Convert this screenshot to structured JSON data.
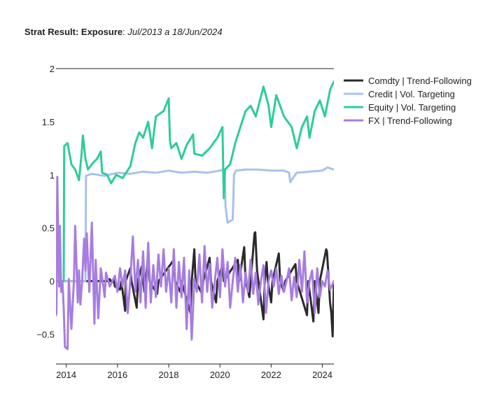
{
  "title": {
    "bold": "Strat Result: Exposure",
    "sep": ": ",
    "italic": "Jul/2013 a 18/Jun/2024"
  },
  "chart_data": {
    "type": "line",
    "title": "Strat Result: Exposure: Jul/2013 a 18/Jun/2024",
    "xlim": [
      2013.6,
      2024.45
    ],
    "ylim": [
      -0.78,
      2.0
    ],
    "x_ticks": [
      2014,
      2016,
      2018,
      2020,
      2022,
      2024
    ],
    "x_tick_labels": [
      "2014",
      "2016",
      "2018",
      "2020",
      "2022",
      "2024"
    ],
    "y_ticks": [
      -0.5,
      0,
      0.5,
      1,
      1.5,
      2
    ],
    "y_tick_labels": [
      "−0.5",
      "0",
      "0.5",
      "1",
      "1.5",
      "2"
    ],
    "legend_position": "right",
    "grid": false,
    "series": [
      {
        "name": "Comdty | Trend-Following",
        "color": "#2a2a2a",
        "x": [
          2013.6,
          2015.65,
          2015.7,
          2015.72,
          2015.85,
          2015.9,
          2016.1,
          2016.15,
          2016.3,
          2016.32,
          2016.5,
          2016.55,
          2016.75,
          2016.8,
          2016.95,
          2017.05,
          2017.1,
          2017.2,
          2017.25,
          2017.55,
          2017.6,
          2018.2,
          2018.25,
          2018.45,
          2018.5,
          2018.85,
          2018.9,
          2019.0,
          2019.05,
          2019.3,
          2019.35,
          2019.6,
          2019.65,
          2019.85,
          2019.9,
          2020.1,
          2020.15,
          2020.7,
          2020.75,
          2020.95,
          2021.0,
          2021.15,
          2021.2,
          2021.35,
          2021.38,
          2021.45,
          2021.5,
          2021.7,
          2021.75,
          2021.82,
          2021.87,
          2022.0,
          2022.05,
          2022.3,
          2022.35,
          2022.5,
          2022.55,
          2022.95,
          2023.0,
          2023.4,
          2023.45,
          2023.65,
          2023.7,
          2023.85,
          2023.9,
          2024.15,
          2024.18,
          2024.25,
          2024.3,
          2024.35,
          2024.4,
          2024.45
        ],
        "values": [
          0,
          0,
          0.02,
          0,
          0.01,
          -0.05,
          -0.08,
          0,
          -0.28,
          0,
          0.12,
          0,
          -0.25,
          0,
          0.14,
          -0.1,
          0,
          0.25,
          0,
          -0.12,
          0,
          0.2,
          0,
          -0.1,
          0,
          -0.3,
          0,
          0.3,
          0,
          -0.12,
          0,
          0.22,
          0,
          -0.2,
          0,
          0.15,
          0,
          0.2,
          0,
          0.32,
          0,
          -0.15,
          0,
          0.45,
          0.46,
          0.1,
          0,
          -0.36,
          0,
          0.18,
          0,
          -0.2,
          0,
          0.26,
          0,
          -0.1,
          0,
          0.16,
          0,
          -0.32,
          0,
          -0.38,
          0,
          -0.3,
          0,
          0.3,
          0.28,
          0,
          -0.2,
          -0.3,
          -0.52,
          0
        ]
      },
      {
        "name": "Credit | Vol. Targeting",
        "color": "#a6c3ec",
        "x": [
          2013.6,
          2014.75,
          2014.77,
          2015.0,
          2015.5,
          2016.0,
          2016.5,
          2017.0,
          2017.5,
          2018.0,
          2018.5,
          2019.0,
          2019.5,
          2020.0,
          2020.18,
          2020.22,
          2020.3,
          2020.5,
          2020.55,
          2020.62,
          2021.0,
          2021.5,
          2022.0,
          2022.5,
          2022.7,
          2022.75,
          2022.85,
          2023.0,
          2023.5,
          2024.0,
          2024.2,
          2024.45
        ],
        "values": [
          0,
          0,
          0.99,
          1.01,
          0.99,
          1.02,
          1.01,
          1.03,
          1.02,
          1.04,
          1.02,
          1.03,
          1.02,
          1.04,
          1.05,
          0.7,
          0.55,
          0.58,
          1.0,
          1.04,
          1.05,
          1.05,
          1.04,
          1.04,
          1.02,
          0.93,
          0.97,
          1.02,
          1.03,
          1.04,
          1.07,
          1.05
        ]
      },
      {
        "name": "Equity | Vol. Targeting",
        "color": "#2ecc9a",
        "x": [
          2013.6,
          2013.9,
          2013.92,
          2014.05,
          2014.2,
          2014.35,
          2014.5,
          2014.6,
          2014.65,
          2014.75,
          2014.85,
          2015.0,
          2015.2,
          2015.35,
          2015.4,
          2015.6,
          2015.75,
          2015.95,
          2016.2,
          2016.5,
          2016.7,
          2016.85,
          2017.0,
          2017.2,
          2017.35,
          2017.5,
          2017.8,
          2018.0,
          2018.05,
          2018.1,
          2018.3,
          2018.5,
          2018.7,
          2018.95,
          2019.0,
          2019.3,
          2019.6,
          2019.9,
          2020.1,
          2020.15,
          2020.2,
          2020.4,
          2020.6,
          2020.8,
          2021.0,
          2021.2,
          2021.4,
          2021.7,
          2021.9,
          2022.0,
          2022.2,
          2022.5,
          2022.8,
          2023.0,
          2023.2,
          2023.4,
          2023.5,
          2023.7,
          2023.9,
          2024.1,
          2024.3,
          2024.45
        ],
        "values": [
          0,
          0,
          1.27,
          1.3,
          1.1,
          1.05,
          0.95,
          1.2,
          1.37,
          1.15,
          1.05,
          1.1,
          1.15,
          1.22,
          1.02,
          1.0,
          0.92,
          1.0,
          0.97,
          1.08,
          1.3,
          1.4,
          1.35,
          1.5,
          1.25,
          1.55,
          1.6,
          1.72,
          1.32,
          1.25,
          1.3,
          1.15,
          1.28,
          1.38,
          1.2,
          1.18,
          1.25,
          1.35,
          1.45,
          0.78,
          1.05,
          1.1,
          1.3,
          1.45,
          1.6,
          1.65,
          1.55,
          1.83,
          1.65,
          1.45,
          1.75,
          1.55,
          1.45,
          1.25,
          1.45,
          1.55,
          1.35,
          1.6,
          1.7,
          1.55,
          1.8,
          1.88
        ]
      },
      {
        "name": "FX | Trend-Following",
        "color": "#a77de0",
        "x": [
          2013.6,
          2013.62,
          2013.65,
          2013.72,
          2013.75,
          2013.8,
          2013.85,
          2013.9,
          2013.95,
          2014.05,
          2014.1,
          2014.2,
          2014.3,
          2014.35,
          2014.45,
          2014.5,
          2014.55,
          2014.62,
          2014.7,
          2014.75,
          2014.8,
          2014.9,
          2015.0,
          2015.1,
          2015.15,
          2015.25,
          2015.35,
          2015.45,
          2015.5,
          2015.55,
          2015.7,
          2015.9,
          2016.0,
          2016.1,
          2016.2,
          2016.3,
          2016.4,
          2016.5,
          2016.6,
          2016.7,
          2016.8,
          2016.9,
          2017.0,
          2017.1,
          2017.2,
          2017.3,
          2017.4,
          2017.5,
          2017.6,
          2017.7,
          2017.8,
          2017.9,
          2018.0,
          2018.1,
          2018.2,
          2018.3,
          2018.4,
          2018.5,
          2018.6,
          2018.7,
          2018.8,
          2018.9,
          2019.0,
          2019.1,
          2019.2,
          2019.3,
          2019.4,
          2019.5,
          2019.6,
          2019.7,
          2019.8,
          2019.9,
          2020.0,
          2020.1,
          2020.2,
          2020.3,
          2020.4,
          2020.5,
          2020.6,
          2020.7,
          2020.8,
          2020.9,
          2021.0,
          2021.1,
          2021.2,
          2021.3,
          2021.4,
          2021.5,
          2021.6,
          2021.7,
          2021.8,
          2021.9,
          2022.0,
          2022.1,
          2022.2,
          2022.3,
          2022.4,
          2022.5,
          2022.6,
          2022.7,
          2022.8,
          2022.9,
          2023.0,
          2023.1,
          2023.2,
          2023.3,
          2023.4,
          2023.5,
          2023.6,
          2023.7,
          2023.8,
          2023.9,
          2024.0,
          2024.1,
          2024.2,
          2024.3,
          2024.45
        ],
        "values": [
          -0.32,
          -0.3,
          0.98,
          -0.05,
          0.52,
          -0.1,
          0.0,
          -0.25,
          -0.62,
          -0.64,
          0.02,
          -0.45,
          0.0,
          0.52,
          -0.2,
          0.1,
          -0.22,
          0.0,
          0.4,
          0.1,
          0.45,
          -0.1,
          0.55,
          -0.4,
          0.2,
          -0.35,
          0.12,
          -0.05,
          -0.15,
          0.08,
          -0.05,
          0.05,
          -0.1,
          0.12,
          -0.05,
          0.1,
          -0.3,
          0.0,
          0.42,
          -0.1,
          0.2,
          -0.2,
          0.28,
          -0.25,
          0.36,
          -0.2,
          0.15,
          -0.15,
          0.25,
          -0.05,
          0.3,
          -0.1,
          0.12,
          -0.2,
          0.3,
          -0.25,
          0.18,
          -0.15,
          0.22,
          -0.45,
          0.1,
          -0.55,
          0.02,
          -0.1,
          0.25,
          -0.2,
          0.33,
          -0.1,
          0.16,
          -0.25,
          0.0,
          0.22,
          -0.15,
          0.3,
          -0.05,
          0.18,
          -0.25,
          0.0,
          0.22,
          -0.1,
          0.15,
          -0.2,
          0.08,
          -0.1,
          0.2,
          -0.12,
          0.08,
          -0.22,
          0.0,
          0.15,
          -0.3,
          0.0,
          0.1,
          -0.05,
          0.12,
          -0.12,
          0.05,
          -0.1,
          0.0,
          0.12,
          -0.18,
          0.04,
          -0.15,
          0.2,
          -0.1,
          0.28,
          -0.2,
          0.0,
          0.1,
          -0.3,
          0.12,
          -0.15,
          0.0,
          -0.05,
          0.1,
          -0.08,
          0.0
        ]
      }
    ]
  }
}
